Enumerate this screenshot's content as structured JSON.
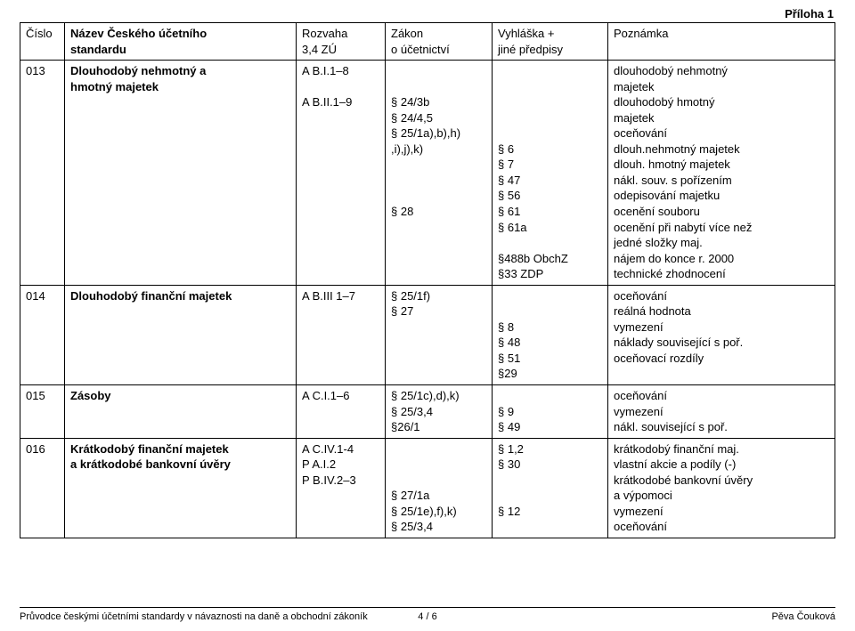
{
  "appendix_label": "Příloha 1",
  "columns": {
    "c1": "Číslo",
    "c2_l1": "Název Českého účetního",
    "c2_l2": "standardu",
    "c3_l1": "Rozvaha",
    "c3_l2": "3,4 ZÚ",
    "c4_l1": "Zákon",
    "c4_l2": "o účetnictví",
    "c5_l1": "Vyhláška +",
    "c5_l2": "jiné předpisy",
    "c6": "Poznámka"
  },
  "r013": {
    "num": "013",
    "name_l1": "Dlouhodobý nehmotný a",
    "name_l2": "hmotný majetek",
    "rozvaha": "A  B.I.1–8\n\nA  B.II.1–9",
    "zakon": "\n\n§ 24/3b\n§ 24/4,5\n§ 25/1a),b),h)\n,i),j),k)\n\n\n\n§ 28",
    "vyhl": "\n\n\n\n\n§ 6\n§ 7\n§ 47\n§ 56\n§ 61\n§ 61a\n\n§488b ObchZ\n§33 ZDP",
    "pozn": "dlouhodobý nehmotný\nmajetek\ndlouhodobý hmotný\nmajetek\noceňování\ndlouh.nehmotný majetek\ndlouh. hmotný majetek\nnákl. souv. s pořízením\nodepisování majetku\nocenění souboru\nocenění při nabytí více než\njedné složky maj.\nnájem do konce r. 2000\ntechnické zhodnocení"
  },
  "r014": {
    "num": "014",
    "name": "Dlouhodobý finanční majetek",
    "rozvaha": "A  B.III 1–7",
    "zakon": "§ 25/1f)\n§ 27",
    "vyhl": "\n\n§ 8\n§ 48\n§ 51\n§29",
    "pozn": "oceňování\nreálná hodnota\nvymezení\nnáklady související s poř.\noceňovací rozdíly"
  },
  "r015": {
    "num": "015",
    "name": "Zásoby",
    "rozvaha": "A  C.I.1–6",
    "zakon": "§ 25/1c),d),k)\n§ 25/3,4\n§26/1",
    "vyhl": "\n§ 9\n§ 49",
    "pozn": "oceňování\nvymezení\nnákl. související s poř."
  },
  "r016": {
    "num": "016",
    "name_l1": "Krátkodobý finanční majetek",
    "name_l2": "a krátkodobé bankovní úvěry",
    "rozvaha": "A  C.IV.1-4\nP  A.I.2\nP  B.IV.2–3",
    "zakon": "\n\n\n§ 27/1a\n§ 25/1e),f),k)\n§ 25/3,4",
    "vyhl": "§ 1,2\n§ 30\n\n\n§ 12",
    "pozn": "krátkodobý finanční maj.\nvlastní akcie a podíly (-)\nkrátkodobé bankovní úvěry\na výpomoci\nvymezení\noceňování"
  },
  "footer": {
    "left": "Průvodce českými účetními standardy v návaznosti na daně a obchodní zákoník",
    "center": "4 / 6",
    "right": "Pěva Čouková"
  }
}
